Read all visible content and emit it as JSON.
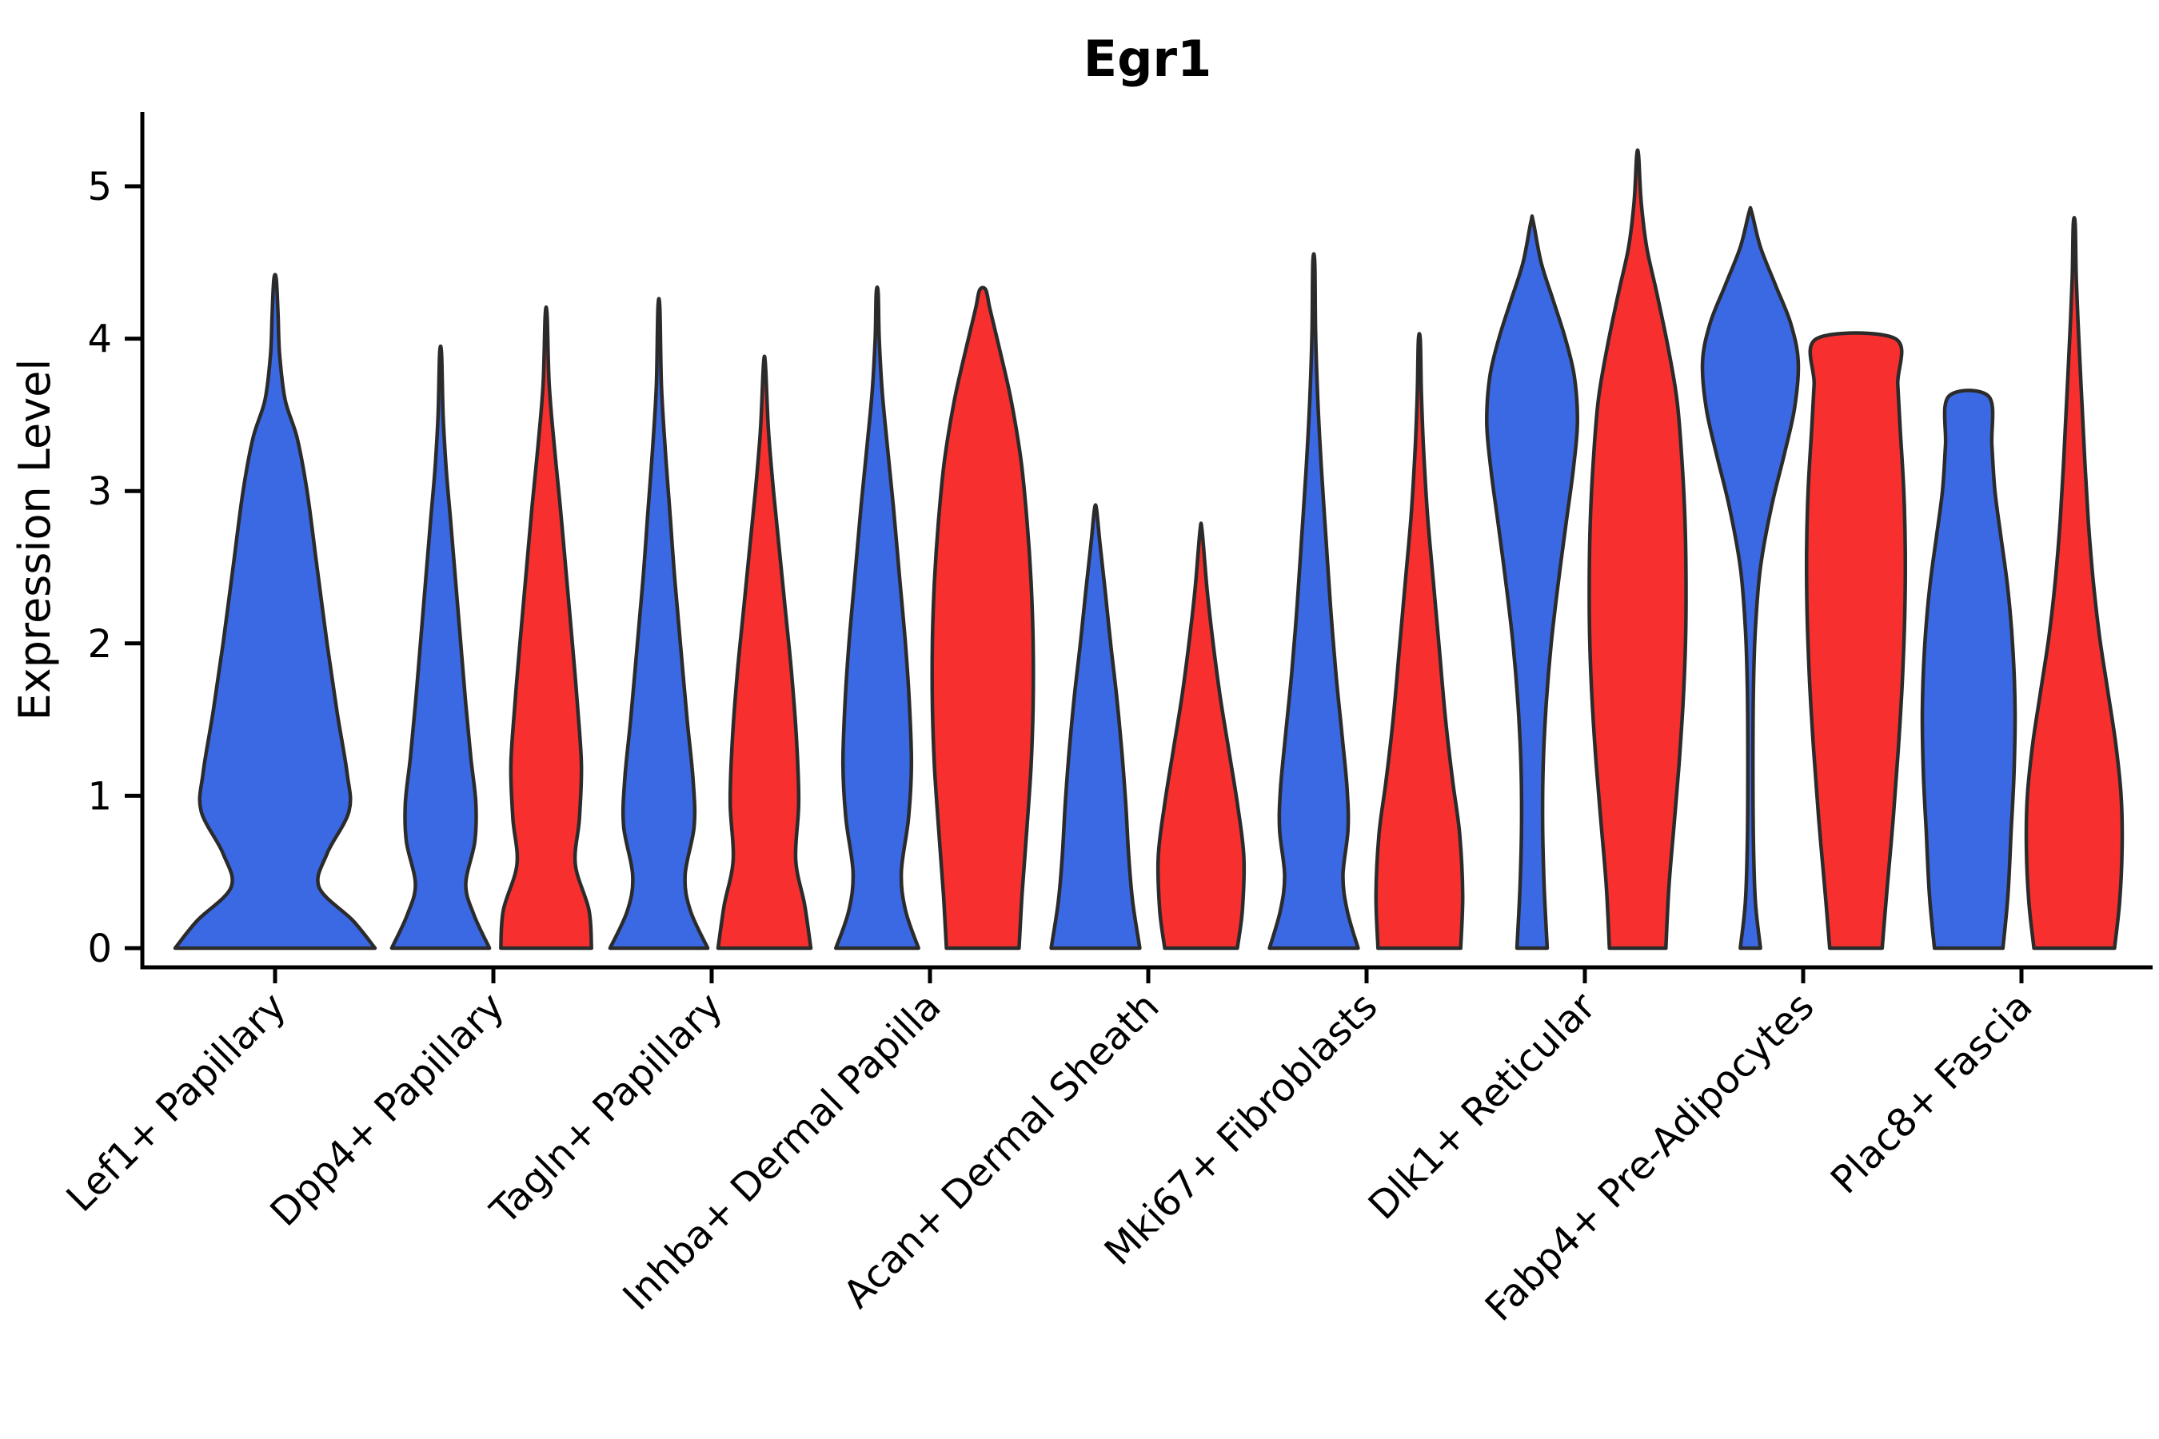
{
  "title": "Egr1",
  "y_axis": {
    "label": "Expression Level",
    "ticks": [
      "0",
      "1",
      "2",
      "3",
      "4",
      "5"
    ]
  },
  "colors": {
    "blue_fill": "#3B69E4",
    "red_fill": "#F7302F",
    "violin_outline": "#2B2B2B",
    "axis": "#000000"
  },
  "chart_data": {
    "type": "violin",
    "title": "Egr1",
    "ylabel": "Expression Level",
    "ylim": [
      0,
      5.45
    ],
    "yticks": [
      0,
      1,
      2,
      3,
      4,
      5
    ],
    "grid": false,
    "legend": "none",
    "hues": [
      "blue",
      "red"
    ],
    "categories": [
      "Lef1+ Papillary",
      "Dpp4+ Papillary",
      "Tagln+ Papillary",
      "Inhba+ Dermal Papilla",
      "Acan+ Dermal Sheath",
      "Mki67+ Fibroblasts",
      "Dlk1+ Reticular",
      "Fabp4+ Pre-Adipocytes",
      "Plac8+ Fascia"
    ],
    "series": [
      {
        "category": "Lef1+ Papillary",
        "violins": [
          {
            "hue": "blue",
            "single": true,
            "max": 4.39,
            "profile": [
              [
                0,
                1.0
              ],
              [
                0.18,
                0.78
              ],
              [
                0.4,
                0.44
              ],
              [
                0.62,
                0.52
              ],
              [
                0.9,
                0.74
              ],
              [
                1.15,
                0.72
              ],
              [
                1.55,
                0.62
              ],
              [
                2.0,
                0.52
              ],
              [
                2.5,
                0.42
              ],
              [
                3.0,
                0.32
              ],
              [
                3.35,
                0.22
              ],
              [
                3.6,
                0.1
              ],
              [
                3.9,
                0.045
              ],
              [
                4.15,
                0.03
              ],
              [
                4.39,
                0.012
              ]
            ]
          }
        ]
      },
      {
        "category": "Dpp4+ Papillary",
        "violins": [
          {
            "hue": "blue",
            "max": 3.9,
            "profile": [
              [
                0,
                0.97
              ],
              [
                0.22,
                0.66
              ],
              [
                0.42,
                0.5
              ],
              [
                0.7,
                0.68
              ],
              [
                0.95,
                0.7
              ],
              [
                1.25,
                0.6
              ],
              [
                1.6,
                0.5
              ],
              [
                2.0,
                0.4
              ],
              [
                2.4,
                0.3
              ],
              [
                2.8,
                0.2
              ],
              [
                3.15,
                0.11
              ],
              [
                3.5,
                0.05
              ],
              [
                3.9,
                0.012
              ]
            ]
          },
          {
            "hue": "red",
            "max": 4.15,
            "profile": [
              [
                0,
                0.9
              ],
              [
                0.25,
                0.85
              ],
              [
                0.55,
                0.58
              ],
              [
                0.85,
                0.66
              ],
              [
                1.2,
                0.7
              ],
              [
                1.6,
                0.62
              ],
              [
                2.0,
                0.52
              ],
              [
                2.45,
                0.4
              ],
              [
                2.9,
                0.28
              ],
              [
                3.3,
                0.16
              ],
              [
                3.7,
                0.06
              ],
              [
                4.15,
                0.012
              ]
            ]
          }
        ]
      },
      {
        "category": "Tagln+ Papillary",
        "violins": [
          {
            "hue": "blue",
            "max": 4.2,
            "profile": [
              [
                0,
                0.97
              ],
              [
                0.25,
                0.62
              ],
              [
                0.48,
                0.52
              ],
              [
                0.8,
                0.7
              ],
              [
                1.1,
                0.68
              ],
              [
                1.5,
                0.56
              ],
              [
                1.95,
                0.44
              ],
              [
                2.4,
                0.32
              ],
              [
                2.85,
                0.22
              ],
              [
                3.3,
                0.12
              ],
              [
                3.7,
                0.05
              ],
              [
                4.2,
                0.012
              ]
            ]
          },
          {
            "hue": "red",
            "max": 3.83,
            "profile": [
              [
                0,
                0.92
              ],
              [
                0.28,
                0.8
              ],
              [
                0.58,
                0.62
              ],
              [
                0.95,
                0.68
              ],
              [
                1.35,
                0.64
              ],
              [
                1.8,
                0.54
              ],
              [
                2.2,
                0.42
              ],
              [
                2.6,
                0.3
              ],
              [
                3.0,
                0.18
              ],
              [
                3.4,
                0.08
              ],
              [
                3.83,
                0.012
              ]
            ]
          }
        ]
      },
      {
        "category": "Inhba+ Dermal Papilla",
        "violins": [
          {
            "hue": "blue",
            "max": 4.3,
            "profile": [
              [
                0,
                0.82
              ],
              [
                0.25,
                0.56
              ],
              [
                0.5,
                0.48
              ],
              [
                0.85,
                0.62
              ],
              [
                1.2,
                0.68
              ],
              [
                1.6,
                0.64
              ],
              [
                2.0,
                0.56
              ],
              [
                2.45,
                0.44
              ],
              [
                2.9,
                0.32
              ],
              [
                3.3,
                0.2
              ],
              [
                3.65,
                0.1
              ],
              [
                4.0,
                0.04
              ],
              [
                4.3,
                0.012
              ]
            ]
          },
          {
            "hue": "red",
            "max": 4.32,
            "profile": [
              [
                0,
                0.72
              ],
              [
                0.35,
                0.78
              ],
              [
                0.8,
                0.88
              ],
              [
                1.2,
                0.96
              ],
              [
                1.6,
                1.0
              ],
              [
                2.0,
                1.0
              ],
              [
                2.4,
                0.96
              ],
              [
                2.8,
                0.88
              ],
              [
                3.2,
                0.76
              ],
              [
                3.6,
                0.56
              ],
              [
                3.95,
                0.32
              ],
              [
                4.2,
                0.14
              ],
              [
                4.32,
                0.06
              ]
            ]
          }
        ]
      },
      {
        "category": "Acan+ Dermal Sheath",
        "violins": [
          {
            "hue": "blue",
            "max": 2.88,
            "profile": [
              [
                0,
                0.88
              ],
              [
                0.3,
                0.74
              ],
              [
                0.6,
                0.66
              ],
              [
                0.95,
                0.6
              ],
              [
                1.3,
                0.52
              ],
              [
                1.65,
                0.42
              ],
              [
                2.0,
                0.3
              ],
              [
                2.35,
                0.19
              ],
              [
                2.65,
                0.09
              ],
              [
                2.88,
                0.02
              ]
            ]
          },
          {
            "hue": "red",
            "max": 2.74,
            "profile": [
              [
                0,
                0.72
              ],
              [
                0.25,
                0.82
              ],
              [
                0.6,
                0.85
              ],
              [
                0.95,
                0.72
              ],
              [
                1.3,
                0.55
              ],
              [
                1.65,
                0.38
              ],
              [
                2.0,
                0.24
              ],
              [
                2.35,
                0.12
              ],
              [
                2.74,
                0.02
              ]
            ]
          }
        ]
      },
      {
        "category": "Mki67+ Fibroblasts",
        "violins": [
          {
            "hue": "blue",
            "max": 4.5,
            "profile": [
              [
                0,
                0.88
              ],
              [
                0.25,
                0.66
              ],
              [
                0.48,
                0.58
              ],
              [
                0.78,
                0.68
              ],
              [
                1.05,
                0.66
              ],
              [
                1.4,
                0.56
              ],
              [
                1.8,
                0.44
              ],
              [
                2.25,
                0.33
              ],
              [
                2.7,
                0.24
              ],
              [
                3.15,
                0.15
              ],
              [
                3.6,
                0.08
              ],
              [
                4.05,
                0.035
              ],
              [
                4.5,
                0.01
              ]
            ]
          },
          {
            "hue": "red",
            "max": 3.99,
            "profile": [
              [
                0,
                0.82
              ],
              [
                0.35,
                0.86
              ],
              [
                0.75,
                0.8
              ],
              [
                1.1,
                0.66
              ],
              [
                1.5,
                0.52
              ],
              [
                1.95,
                0.4
              ],
              [
                2.4,
                0.28
              ],
              [
                2.85,
                0.16
              ],
              [
                3.3,
                0.08
              ],
              [
                3.65,
                0.04
              ],
              [
                3.99,
                0.012
              ]
            ]
          }
        ]
      },
      {
        "category": "Dlk1+ Reticular",
        "violins": [
          {
            "hue": "blue",
            "max": 4.77,
            "profile": [
              [
                0,
                0.3
              ],
              [
                0.4,
                0.24
              ],
              [
                0.8,
                0.21
              ],
              [
                1.2,
                0.22
              ],
              [
                1.6,
                0.28
              ],
              [
                2.0,
                0.38
              ],
              [
                2.4,
                0.52
              ],
              [
                2.8,
                0.68
              ],
              [
                3.15,
                0.82
              ],
              [
                3.45,
                0.9
              ],
              [
                3.75,
                0.84
              ],
              [
                4.0,
                0.66
              ],
              [
                4.25,
                0.42
              ],
              [
                4.5,
                0.18
              ],
              [
                4.77,
                0.02
              ]
            ]
          },
          {
            "hue": "red",
            "max": 5.2,
            "profile": [
              [
                0,
                0.56
              ],
              [
                0.4,
                0.62
              ],
              [
                0.8,
                0.72
              ],
              [
                1.2,
                0.82
              ],
              [
                1.6,
                0.9
              ],
              [
                2.0,
                0.95
              ],
              [
                2.4,
                0.96
              ],
              [
                2.8,
                0.94
              ],
              [
                3.2,
                0.88
              ],
              [
                3.6,
                0.78
              ],
              [
                3.95,
                0.6
              ],
              [
                4.3,
                0.38
              ],
              [
                4.6,
                0.18
              ],
              [
                4.9,
                0.07
              ],
              [
                5.2,
                0.012
              ]
            ]
          }
        ]
      },
      {
        "category": "Fabp4+ Pre-Adipocytes",
        "violins": [
          {
            "hue": "blue",
            "max": 4.83,
            "profile": [
              [
                0,
                0.2
              ],
              [
                0.3,
                0.1
              ],
              [
                0.7,
                0.06
              ],
              [
                1.2,
                0.05
              ],
              [
                1.7,
                0.06
              ],
              [
                2.1,
                0.1
              ],
              [
                2.5,
                0.2
              ],
              [
                2.9,
                0.42
              ],
              [
                3.25,
                0.68
              ],
              [
                3.55,
                0.88
              ],
              [
                3.85,
                0.95
              ],
              [
                4.1,
                0.8
              ],
              [
                4.35,
                0.5
              ],
              [
                4.6,
                0.2
              ],
              [
                4.83,
                0.025
              ]
            ]
          },
          {
            "hue": "red",
            "max": 4.0,
            "flat_top": true,
            "profile": [
              [
                0,
                0.52
              ],
              [
                0.4,
                0.62
              ],
              [
                0.85,
                0.74
              ],
              [
                1.3,
                0.84
              ],
              [
                1.75,
                0.92
              ],
              [
                2.2,
                0.97
              ],
              [
                2.6,
                0.98
              ],
              [
                3.0,
                0.95
              ],
              [
                3.4,
                0.88
              ],
              [
                3.7,
                0.83
              ],
              [
                4.0,
                0.78
              ]
            ]
          }
        ]
      },
      {
        "category": "Plac8+ Fascia",
        "violins": [
          {
            "hue": "blue",
            "max": 3.62,
            "flat_top": true,
            "profile": [
              [
                0,
                0.68
              ],
              [
                0.35,
                0.78
              ],
              [
                0.75,
                0.84
              ],
              [
                1.15,
                0.9
              ],
              [
                1.55,
                0.92
              ],
              [
                1.95,
                0.88
              ],
              [
                2.35,
                0.78
              ],
              [
                2.7,
                0.64
              ],
              [
                3.0,
                0.52
              ],
              [
                3.3,
                0.46
              ],
              [
                3.62,
                0.4
              ]
            ]
          },
          {
            "hue": "red",
            "max": 4.75,
            "profile": [
              [
                0,
                0.8
              ],
              [
                0.3,
                0.9
              ],
              [
                0.65,
                0.95
              ],
              [
                1.0,
                0.93
              ],
              [
                1.35,
                0.82
              ],
              [
                1.7,
                0.66
              ],
              [
                2.05,
                0.5
              ],
              [
                2.4,
                0.38
              ],
              [
                2.8,
                0.28
              ],
              [
                3.2,
                0.21
              ],
              [
                3.6,
                0.15
              ],
              [
                4.0,
                0.09
              ],
              [
                4.4,
                0.04
              ],
              [
                4.75,
                0.01
              ]
            ]
          }
        ]
      }
    ]
  }
}
